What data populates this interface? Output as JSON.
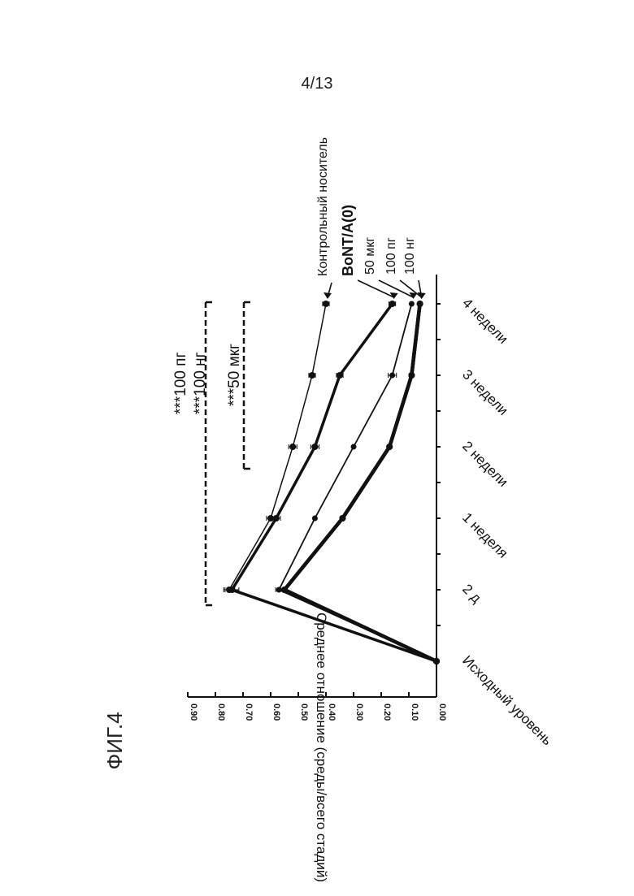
{
  "page": {
    "page_number": "4/13",
    "figure_label": "ФИГ.4"
  },
  "chart_data": {
    "type": "line",
    "xlabel": "",
    "ylabel": "Среднее отношение (среды/всего стадий)",
    "ylim": [
      0,
      0.9
    ],
    "yticks": [
      "0.00",
      "0.10",
      "0.20",
      "0.30",
      "0.40",
      "0.50",
      "0.60",
      "0.70",
      "0.80",
      "0.90"
    ],
    "categories": [
      "Исходный уровень",
      "2 д",
      "1 неделя",
      "2 недели",
      "3 недели",
      "4 недели"
    ],
    "x": [
      0,
      1,
      1.5,
      2,
      2.5,
      3,
      3.5
    ],
    "series": [
      {
        "name": "Контрольный носитель",
        "values": [
          0.0,
          0.75,
          0.6,
          0.52,
          0.45,
          0.4
        ]
      },
      {
        "name": "BoNT/A(0)",
        "values": [
          0.0,
          0.74,
          0.58,
          0.44,
          0.35,
          0.16
        ]
      },
      {
        "name": "50 мкг",
        "values": [
          0.0,
          0.57,
          0.44,
          0.3,
          0.16,
          0.09
        ]
      },
      {
        "name": "100 пг",
        "values": [
          0.0,
          0.55,
          0.34,
          0.17,
          0.09,
          0.06
        ]
      },
      {
        "name": "100 нг",
        "values": [
          0.0,
          0.55,
          0.34,
          0.17,
          0.09,
          0.06
        ]
      }
    ],
    "annotations": {
      "bracket_top": [
        "***100 пг",
        "***100 нг"
      ],
      "bracket_bottom": [
        "***50 мкг"
      ]
    },
    "legend_placement": "right, arrows to line ends",
    "grid": false
  }
}
